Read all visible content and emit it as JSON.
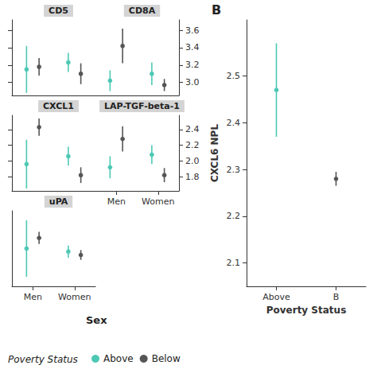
{
  "chart_data": [
    {
      "type": "errorbar",
      "title": "CD5",
      "categories": [
        "Men",
        "Women"
      ],
      "series": [
        {
          "name": "Above",
          "color": "#4dc8b4",
          "values": [
            3.15,
            3.23
          ],
          "lower": [
            2.88,
            3.12
          ],
          "upper": [
            3.42,
            3.34
          ]
        },
        {
          "name": "Below",
          "color": "#555555",
          "values": [
            3.18,
            3.1
          ],
          "lower": [
            3.08,
            2.98
          ],
          "upper": [
            3.28,
            3.22
          ]
        }
      ],
      "ylim": [
        2.85,
        3.72
      ],
      "yticks": [
        {
          "value": 3.0,
          "label": "3.0"
        },
        3.2,
        3.4,
        3.6
      ],
      "grid": false,
      "tick_labels": false
    },
    {
      "type": "errorbar",
      "title": "CD8A",
      "categories": [
        "Men",
        "Women"
      ],
      "series": [
        {
          "name": "Above",
          "color": "#4dc8b4",
          "values": [
            3.02,
            3.1
          ],
          "lower": [
            2.9,
            2.97
          ],
          "upper": [
            3.14,
            3.23
          ]
        },
        {
          "name": "Below",
          "color": "#555555",
          "values": [
            3.42,
            2.97
          ],
          "lower": [
            3.22,
            2.9
          ],
          "upper": [
            3.62,
            3.04
          ]
        }
      ],
      "ylim": [
        2.85,
        3.72
      ],
      "yticks": [
        {
          "value": 3.0,
          "label": "3.0"
        },
        3.2,
        3.4,
        3.6
      ],
      "grid": false,
      "tick_labels": "y"
    },
    {
      "type": "errorbar",
      "title": "CXCL1",
      "categories": [
        "Men",
        "Women"
      ],
      "series": [
        {
          "name": "Above",
          "color": "#4dc8b4",
          "values": [
            1.96,
            2.06
          ],
          "lower": [
            1.65,
            1.94
          ],
          "upper": [
            2.27,
            2.18
          ]
        },
        {
          "name": "Below",
          "color": "#555555",
          "values": [
            2.43,
            1.82
          ],
          "lower": [
            2.32,
            1.72
          ],
          "upper": [
            2.54,
            1.92
          ]
        }
      ],
      "ylim": [
        1.62,
        2.58
      ],
      "yticks": [
        1.8,
        {
          "value": 2.0,
          "label": "2.0"
        },
        2.2,
        2.4
      ],
      "grid": false,
      "tick_labels": false
    },
    {
      "type": "errorbar",
      "title": "LAP-TGF-beta-1",
      "categories": [
        "Men",
        "Women"
      ],
      "series": [
        {
          "name": "Above",
          "color": "#4dc8b4",
          "values": [
            1.92,
            2.08
          ],
          "lower": [
            1.78,
            1.96
          ],
          "upper": [
            2.06,
            2.2
          ]
        },
        {
          "name": "Below",
          "color": "#555555",
          "values": [
            2.28,
            1.82
          ],
          "lower": [
            2.12,
            1.73
          ],
          "upper": [
            2.44,
            1.91
          ]
        }
      ],
      "ylim": [
        1.62,
        2.58
      ],
      "yticks": [
        1.8,
        {
          "value": 2.0,
          "label": "2.0"
        },
        2.2,
        2.4
      ],
      "grid": false
    },
    {
      "type": "errorbar",
      "title": "uPA",
      "categories": [
        "Men",
        "Women"
      ],
      "series": [
        {
          "name": "Above",
          "color": "#4dc8b4",
          "values": [
            1.3,
            1.22
          ],
          "lower": [
            0.55,
            1.06
          ],
          "upper": [
            2.05,
            1.38
          ]
        },
        {
          "name": "Below",
          "color": "#555555",
          "values": [
            1.58,
            1.13
          ],
          "lower": [
            1.42,
            1.0
          ],
          "upper": [
            1.74,
            1.26
          ]
        }
      ],
      "ylim": [
        0.3,
        2.3
      ],
      "yticks": [],
      "grid": false,
      "tick_labels": "x",
      "xlabel": "Sex",
      "legend": "lower left",
      "legend_title": "Poverty Status"
    },
    {
      "type": "errorbar",
      "categories": [
        "Above",
        "B"
      ],
      "series": [
        {
          "name": "Above",
          "color": "#4dc8b4",
          "values": [
            2.47,
            null
          ],
          "lower": [
            2.37,
            null
          ],
          "upper": [
            2.57,
            null
          ]
        },
        {
          "name": "Below",
          "color": "#555555",
          "values": [
            null,
            2.28
          ],
          "lower": [
            null,
            2.265
          ],
          "upper": [
            null,
            2.295
          ]
        }
      ],
      "ylim": [
        2.05,
        2.62
      ],
      "yticks": [
        2.1,
        2.2,
        2.3,
        2.4,
        2.5
      ],
      "xlabel": "Poverty Status",
      "ylabel": "CXCL6 NPL",
      "annotations": [
        {
          "text": "B"
        }
      ],
      "grid": false
    }
  ]
}
